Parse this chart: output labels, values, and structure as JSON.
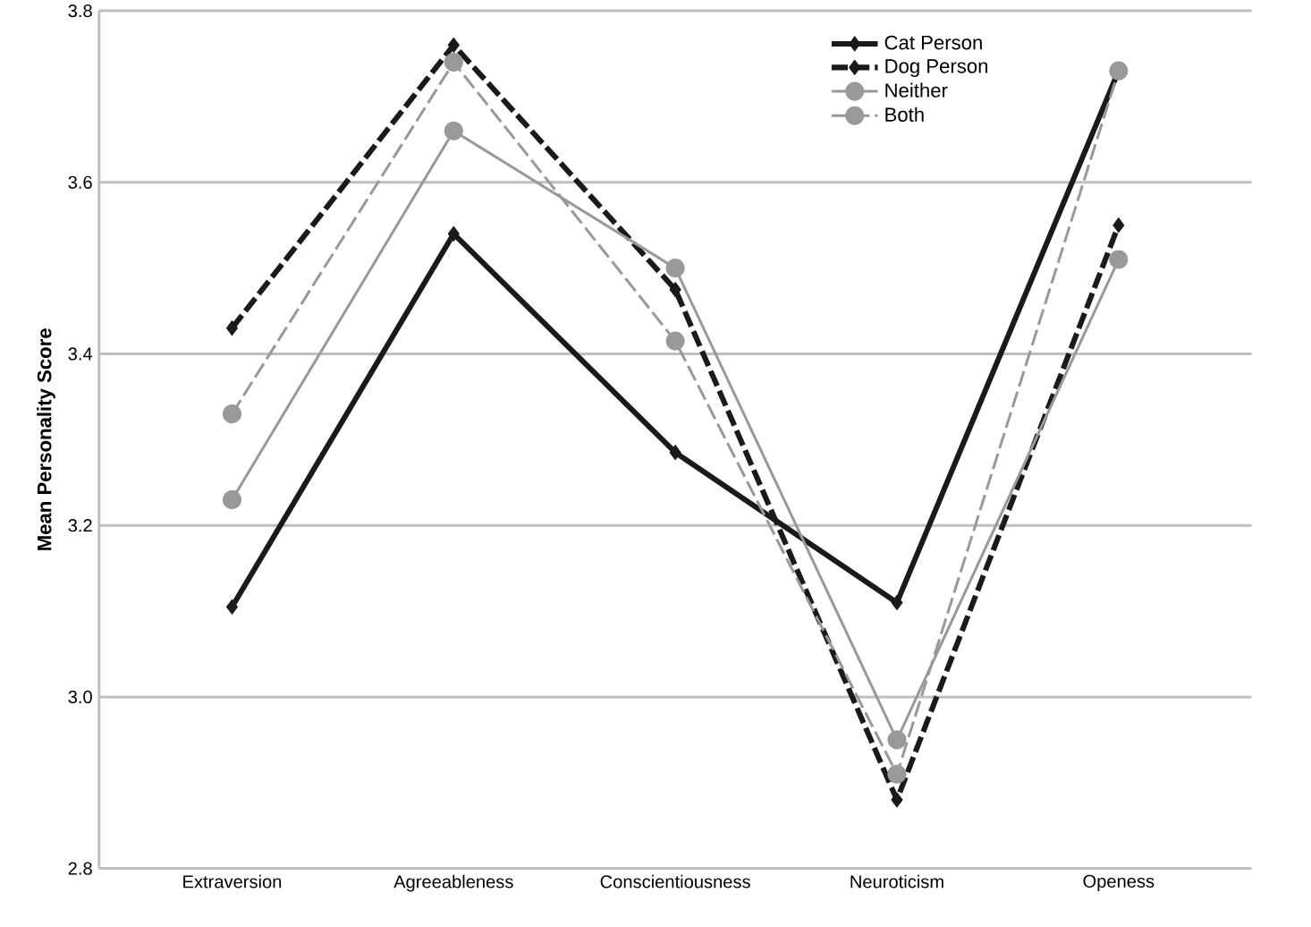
{
  "chart_data": {
    "type": "line",
    "ylabel": "Mean Personality Score",
    "categories": [
      "Extraversion",
      "Agreeableness",
      "Conscientiousness",
      "Neuroticism",
      "Openess"
    ],
    "series": [
      {
        "name": "Cat Person",
        "color": "#1a1a1a",
        "marker": "diamond",
        "line_style": "solid",
        "values": [
          3.105,
          3.54,
          3.285,
          3.11,
          3.73
        ]
      },
      {
        "name": "Dog Person",
        "color": "#1a1a1a",
        "marker": "diamond",
        "line_style": "dashed",
        "values": [
          3.43,
          3.76,
          3.475,
          2.88,
          3.55
        ]
      },
      {
        "name": "Neither",
        "color": "#999999",
        "marker": "circle",
        "line_style": "solid",
        "values": [
          3.23,
          3.66,
          3.5,
          2.95,
          3.51
        ]
      },
      {
        "name": "Both",
        "color": "#999999",
        "marker": "circle",
        "line_style": "dashed",
        "values": [
          3.33,
          3.74,
          3.415,
          2.91,
          3.73
        ]
      }
    ],
    "ylim": [
      2.8,
      3.8
    ],
    "yticks": [
      2.8,
      {
        "value": 3.0,
        "label": "3.0"
      },
      3.2,
      3.4,
      3.6,
      3.8
    ],
    "grid": "y",
    "legend": "top right"
  }
}
